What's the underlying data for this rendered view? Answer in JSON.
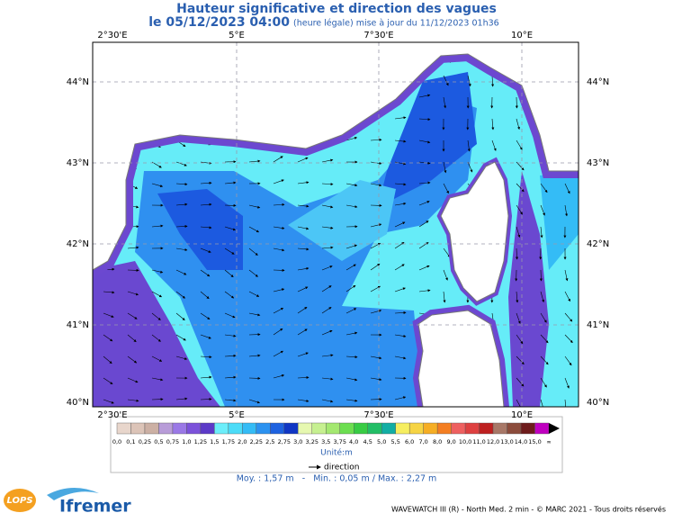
{
  "header": {
    "title": "Hauteur significative et direction des vagues",
    "date": "le 05/12/2023 04:00",
    "note": "(heure légale) mise à jour du 11/12/2023 01h36"
  },
  "map": {
    "lon_labels": [
      "2°30'E",
      "5°E",
      "7°30'E",
      "10°E"
    ],
    "lat_labels": [
      "44°N",
      "43°N",
      "42°N",
      "41°N",
      "40°N"
    ]
  },
  "legend": {
    "labels": [
      "0,0",
      "0,1",
      "0,25",
      "0,5",
      "0,75",
      "1,0",
      "1,25",
      "1,5",
      "1,75",
      "2,0",
      "2,25",
      "2,5",
      "2,75",
      "3,0",
      "3,25",
      "3,5",
      "3,75",
      "4,0",
      "4,5",
      "5,0",
      "5,5",
      "6,0",
      "7,0",
      "8,0",
      "9,0",
      "10,0",
      "11,0",
      "12,0",
      "13,0",
      "14,0",
      "15,0",
      "∞"
    ],
    "colors": [
      "#e8d6cc",
      "#dcc4b8",
      "#ccb0a4",
      "#b89cd8",
      "#9a78e6",
      "#7c52da",
      "#5c3ac8",
      "#6ceefa",
      "#4cdcf8",
      "#34bcf6",
      "#2c92f0",
      "#1e62e0",
      "#1036c4",
      "#e6f8b0",
      "#c6f090",
      "#a4e870",
      "#6cde50",
      "#38cc44",
      "#22be66",
      "#12aea4",
      "#f6ee60",
      "#f6d444",
      "#f6ae24",
      "#f47e22",
      "#ee6060",
      "#de4040",
      "#be2020",
      "#a87868",
      "#8c4c3c",
      "#6e1c1c",
      "#c000c0"
    ],
    "unit": "Unité:m",
    "direction": "direction"
  },
  "stats": "Moy. : 1,57 m   -   Min. : 0,05 m / Max. : 2,27 m",
  "footer": "WAVEWATCH III (R) - North Med. 2 min - © MARC 2021 - Tous droits réservés",
  "logos": {
    "lops": "LOPS",
    "ifremer": "Ifremer"
  }
}
